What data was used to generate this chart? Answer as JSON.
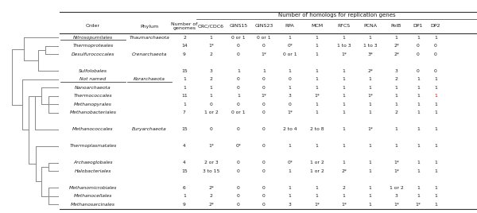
{
  "rows": [
    {
      "order": "Nitrosopumilales",
      "phylum": "Thaumarchaeota",
      "genomes": "2",
      "orc": "1",
      "gins15": "0 or 1",
      "gins23": "0 or 1",
      "rpa": "1",
      "mcm": "1",
      "rfcs": "1",
      "pcna": "1",
      "polb": "1",
      "dp1": "1",
      "dp2": "1",
      "ul_order": true,
      "ul_phylum": false,
      "gap_before": false
    },
    {
      "order": "Thermoproteales",
      "phylum": "",
      "genomes": "14",
      "orc": "1*",
      "gins15": "0",
      "gins23": "0",
      "rpa": "0*",
      "mcm": "1",
      "rfcs": "1 to 3",
      "pcna": "1 to 3",
      "polb": "2*",
      "dp1": "0",
      "dp2": "0",
      "ul_order": false,
      "ul_phylum": false,
      "gap_before": false
    },
    {
      "order": "Desulfurococcales",
      "phylum": "Crenarchaeota",
      "genomes": "9",
      "orc": "2",
      "gins15": "0",
      "gins23": "1*",
      "rpa": "0 or 1",
      "mcm": "1",
      "rfcs": "1*",
      "pcna": "3*",
      "polb": "2*",
      "dp1": "0",
      "dp2": "0",
      "ul_order": false,
      "ul_phylum": false,
      "gap_before": false
    },
    {
      "order": "",
      "phylum": "",
      "genomes": "",
      "orc": "",
      "gins15": "",
      "gins23": "",
      "rpa": "",
      "mcm": "",
      "rfcs": "",
      "pcna": "",
      "polb": "",
      "dp1": "",
      "dp2": "",
      "ul_order": false,
      "ul_phylum": false,
      "gap_before": false
    },
    {
      "order": "Sulfolobales",
      "phylum": "",
      "genomes": "15",
      "orc": "3",
      "gins15": "1",
      "gins23": "1",
      "rpa": "1",
      "mcm": "1",
      "rfcs": "1",
      "pcna": "2*",
      "polb": "3",
      "dp1": "0",
      "dp2": "0",
      "ul_order": false,
      "ul_phylum": false,
      "gap_before": false
    },
    {
      "order": "Not named",
      "phylum": "Korarchaeota",
      "genomes": "1",
      "orc": "2",
      "gins15": "0",
      "gins23": "0",
      "rpa": "0",
      "mcm": "1",
      "rfcs": "1",
      "pcna": "1",
      "polb": "2",
      "dp1": "1",
      "dp2": "1",
      "ul_order": true,
      "ul_phylum": true,
      "gap_before": false
    },
    {
      "order": "Nanoarchaeota",
      "phylum": "",
      "genomes": "1",
      "orc": "1",
      "gins15": "0",
      "gins23": "0",
      "rpa": "1",
      "mcm": "1",
      "rfcs": "1",
      "pcna": "1",
      "polb": "1",
      "dp1": "1",
      "dp2": "1",
      "ul_order": false,
      "ul_phylum": false,
      "gap_before": false
    },
    {
      "order": "Thermococcales",
      "phylum": "",
      "genomes": "11",
      "orc": "1",
      "gins15": "1",
      "gins23": "1*",
      "rpa": "3",
      "mcm": "1*",
      "rfcs": "1",
      "pcna": "1*",
      "polb": "1",
      "dp1": "1",
      "dp2": "1_red",
      "ul_order": false,
      "ul_phylum": false,
      "gap_before": false
    },
    {
      "order": "Methanopyrales",
      "phylum": "",
      "genomes": "1",
      "orc": "0",
      "gins15": "0",
      "gins23": "0",
      "rpa": "0",
      "mcm": "1",
      "rfcs": "1",
      "pcna": "1",
      "polb": "1",
      "dp1": "1",
      "dp2": "1",
      "ul_order": false,
      "ul_phylum": false,
      "gap_before": false
    },
    {
      "order": "Methanobacteriales",
      "phylum": "",
      "genomes": "7",
      "orc": "1 or 2",
      "gins15": "0 or 1",
      "gins23": "0",
      "rpa": "1*",
      "mcm": "1",
      "rfcs": "1",
      "pcna": "1",
      "polb": "2",
      "dp1": "1",
      "dp2": "1",
      "ul_order": false,
      "ul_phylum": false,
      "gap_before": false
    },
    {
      "order": "",
      "phylum": "",
      "genomes": "",
      "orc": "",
      "gins15": "",
      "gins23": "",
      "rpa": "",
      "mcm": "",
      "rfcs": "",
      "pcna": "",
      "polb": "",
      "dp1": "",
      "dp2": "",
      "ul_order": false,
      "ul_phylum": false,
      "gap_before": false
    },
    {
      "order": "Methanococcales",
      "phylum": "Euryarchaeota",
      "genomes": "15",
      "orc": "0",
      "gins15": "0",
      "gins23": "0",
      "rpa": "2 to 4",
      "mcm": "2 to 8",
      "rfcs": "1",
      "pcna": "1*",
      "polb": "1",
      "dp1": "1",
      "dp2": "1",
      "ul_order": false,
      "ul_phylum": false,
      "gap_before": false
    },
    {
      "order": "",
      "phylum": "",
      "genomes": "",
      "orc": "",
      "gins15": "",
      "gins23": "",
      "rpa": "",
      "mcm": "",
      "rfcs": "",
      "pcna": "",
      "polb": "",
      "dp1": "",
      "dp2": "",
      "ul_order": false,
      "ul_phylum": false,
      "gap_before": false
    },
    {
      "order": "Thermoplasmatales",
      "phylum": "",
      "genomes": "4",
      "orc": "1*",
      "gins15": "0*",
      "gins23": "0",
      "rpa": "1",
      "mcm": "1",
      "rfcs": "1",
      "pcna": "1",
      "polb": "1",
      "dp1": "1",
      "dp2": "1",
      "ul_order": false,
      "ul_phylum": false,
      "gap_before": false
    },
    {
      "order": "",
      "phylum": "",
      "genomes": "",
      "orc": "",
      "gins15": "",
      "gins23": "",
      "rpa": "",
      "mcm": "",
      "rfcs": "",
      "pcna": "",
      "polb": "",
      "dp1": "",
      "dp2": "",
      "ul_order": false,
      "ul_phylum": false,
      "gap_before": false
    },
    {
      "order": "Archaeoglobales",
      "phylum": "",
      "genomes": "4",
      "orc": "2 or 3",
      "gins15": "0",
      "gins23": "0",
      "rpa": "0*",
      "mcm": "1 or 2",
      "rfcs": "1",
      "pcna": "1",
      "polb": "1*",
      "dp1": "1",
      "dp2": "1",
      "ul_order": false,
      "ul_phylum": false,
      "gap_before": false
    },
    {
      "order": "Halobacteriales",
      "phylum": "",
      "genomes": "15",
      "orc": "3 to 15",
      "gins15": "0",
      "gins23": "0",
      "rpa": "1",
      "mcm": "1 or 2",
      "rfcs": "2*",
      "pcna": "1",
      "polb": "1*",
      "dp1": "1",
      "dp2": "1",
      "ul_order": false,
      "ul_phylum": false,
      "gap_before": false
    },
    {
      "order": "",
      "phylum": "",
      "genomes": "",
      "orc": "",
      "gins15": "",
      "gins23": "",
      "rpa": "",
      "mcm": "",
      "rfcs": "",
      "pcna": "",
      "polb": "",
      "dp1": "",
      "dp2": "",
      "ul_order": false,
      "ul_phylum": false,
      "gap_before": false
    },
    {
      "order": "Methanomicrobiales",
      "phylum": "",
      "genomes": "6",
      "orc": "2*",
      "gins15": "0",
      "gins23": "0",
      "rpa": "1",
      "mcm": "1",
      "rfcs": "2",
      "pcna": "1",
      "polb": "1 or 2",
      "dp1": "1",
      "dp2": "1",
      "ul_order": false,
      "ul_phylum": false,
      "gap_before": false
    },
    {
      "order": "Methanocellales",
      "phylum": "",
      "genomes": "1",
      "orc": "2",
      "gins15": "0",
      "gins23": "0",
      "rpa": "1",
      "mcm": "1",
      "rfcs": "1",
      "pcna": "1",
      "polb": "3",
      "dp1": "1",
      "dp2": "1",
      "ul_order": false,
      "ul_phylum": false,
      "gap_before": false
    },
    {
      "order": "Methanosarcinales",
      "phylum": "",
      "genomes": "9",
      "orc": "2*",
      "gins15": "0",
      "gins23": "0",
      "rpa": "3",
      "mcm": "1*",
      "rfcs": "1*",
      "pcna": "1",
      "polb": "1*",
      "dp1": "1*",
      "dp2": "1",
      "ul_order": false,
      "ul_phylum": false,
      "gap_before": false
    }
  ],
  "tree_color": "#888888",
  "bg": "#ffffff",
  "text_color": "#1a1a1a",
  "line_color": "#333333",
  "red_color": "#cc0000"
}
